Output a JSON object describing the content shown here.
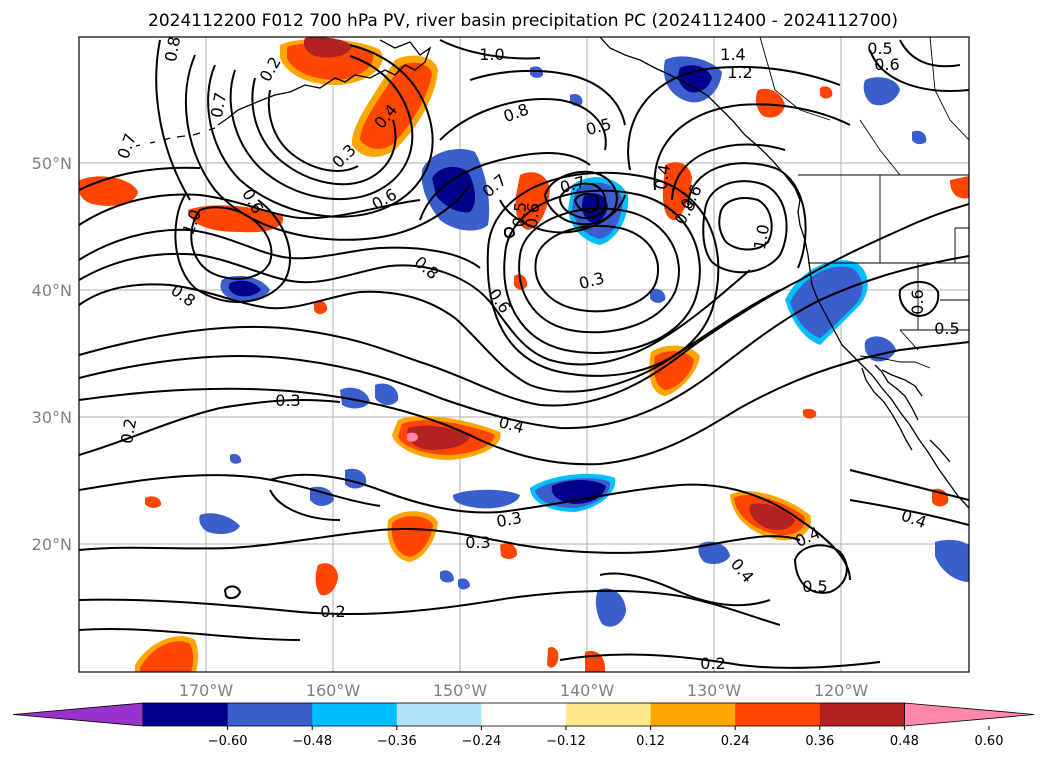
{
  "title": "2024112200 F012 700 hPa PV, river basin precipitation PC (2024112400 - 2024112700)",
  "map": {
    "lon_ticks": [
      "170°W",
      "160°W",
      "150°W",
      "140°W",
      "130°W",
      "120°W"
    ],
    "lat_ticks": [
      "50°N",
      "40°N",
      "30°N",
      "20°N"
    ],
    "grid": "on"
  },
  "colorbar": {
    "ticks": [
      "−0.60",
      "−0.48",
      "−0.36",
      "−0.24",
      "−0.12",
      "0.12",
      "0.24",
      "0.36",
      "0.48",
      "0.60"
    ],
    "colors": [
      "#9932cc",
      "#00008b",
      "#3a5fcd",
      "#00bfff",
      "#aee3f8",
      "#ffffff",
      "#ffe88a",
      "#ffa500",
      "#ff4500",
      "#b22222",
      "#ff88aa"
    ],
    "extend": "both"
  },
  "contour_labels": [
    {
      "text": "0.8"
    },
    {
      "text": "1.0"
    },
    {
      "text": "1.4"
    },
    {
      "text": "1.2"
    },
    {
      "text": "0.5"
    },
    {
      "text": "0.6"
    },
    {
      "text": "0.2"
    },
    {
      "text": "0.4"
    },
    {
      "text": "0.3"
    },
    {
      "text": "0.8"
    },
    {
      "text": "0.5"
    },
    {
      "text": "0.4"
    },
    {
      "text": "0.7"
    },
    {
      "text": "0.6"
    },
    {
      "text": "1.0"
    },
    {
      "text": "0.7"
    },
    {
      "text": "0.7"
    },
    {
      "text": "0.5"
    },
    {
      "text": "0.6"
    },
    {
      "text": "0.7"
    },
    {
      "text": "0.6"
    },
    {
      "text": "0.8"
    },
    {
      "text": "1.0"
    },
    {
      "text": "0.8"
    },
    {
      "text": "0.8"
    },
    {
      "text": "0.3"
    },
    {
      "text": "0.6"
    },
    {
      "text": "0.6"
    },
    {
      "text": "0.5"
    },
    {
      "text": "0.6"
    },
    {
      "text": "0.3"
    },
    {
      "text": "0.2"
    },
    {
      "text": "0.4"
    },
    {
      "text": "0.3"
    },
    {
      "text": "0.3"
    },
    {
      "text": "0.4"
    },
    {
      "text": "0.4"
    },
    {
      "text": "0.5"
    },
    {
      "text": "0.4"
    },
    {
      "text": "0.2"
    },
    {
      "text": "0.2"
    }
  ]
}
